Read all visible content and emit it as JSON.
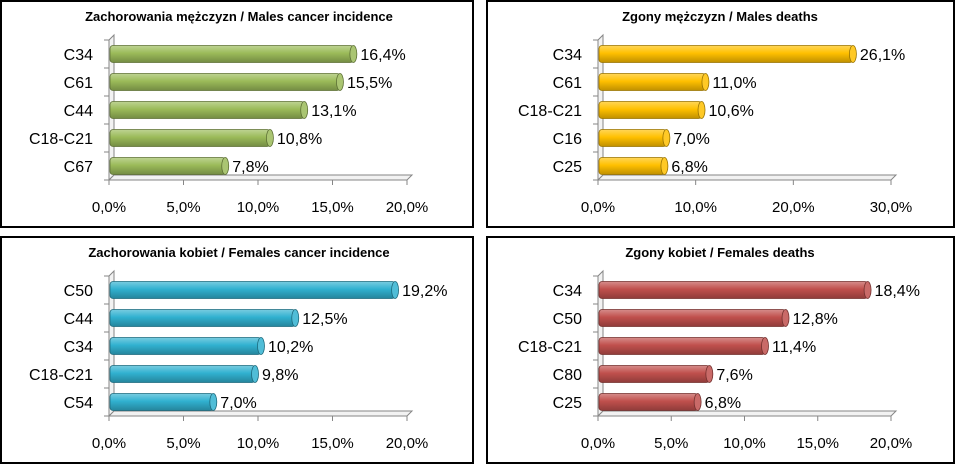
{
  "chart_data": [
    {
      "type": "bar",
      "orientation": "horizontal",
      "title": "Zachorowania mężczyzn / Males cancer incidence",
      "categories": [
        "C34",
        "C61",
        "C44",
        "C18-C21",
        "C67"
      ],
      "values": [
        16.4,
        15.5,
        13.1,
        10.8,
        7.8
      ],
      "value_labels": [
        "16,4%",
        "15,5%",
        "13,1%",
        "10,8%",
        "7,8%"
      ],
      "xlim": [
        0,
        20
      ],
      "x_ticks": [
        0,
        5,
        10,
        15,
        20
      ],
      "x_tick_labels": [
        "0,0%",
        "5,0%",
        "10,0%",
        "15,0%",
        "20,0%"
      ],
      "color": "#9bbb59",
      "xlabel": "",
      "ylabel": "",
      "grid": false
    },
    {
      "type": "bar",
      "orientation": "horizontal",
      "title": "Zgony mężczyzn / Males deaths",
      "categories": [
        "C34",
        "C61",
        "C18-C21",
        "C16",
        "C25"
      ],
      "values": [
        26.1,
        11.0,
        10.6,
        7.0,
        6.8
      ],
      "value_labels": [
        "26,1%",
        "11,0%",
        "10,6%",
        "7,0%",
        "6,8%"
      ],
      "xlim": [
        0,
        30
      ],
      "x_ticks": [
        0,
        10,
        20,
        30
      ],
      "x_tick_labels": [
        "0,0%",
        "10,0%",
        "20,0%",
        "30,0%"
      ],
      "color": "#ffc000",
      "xlabel": "",
      "ylabel": "",
      "grid": false
    },
    {
      "type": "bar",
      "orientation": "horizontal",
      "title": "Zachorowania kobiet / Females cancer incidence",
      "categories": [
        "C50",
        "C44",
        "C34",
        "C18-C21",
        "C54"
      ],
      "values": [
        19.2,
        12.5,
        10.2,
        9.8,
        7.0
      ],
      "value_labels": [
        "19,2%",
        "12,5%",
        "10,2%",
        "9,8%",
        "7,0%"
      ],
      "xlim": [
        0,
        20
      ],
      "x_ticks": [
        0,
        5,
        10,
        15,
        20
      ],
      "x_tick_labels": [
        "0,0%",
        "5,0%",
        "10,0%",
        "15,0%",
        "20,0%"
      ],
      "color": "#31b1d0",
      "xlabel": "",
      "ylabel": "",
      "grid": false
    },
    {
      "type": "bar",
      "orientation": "horizontal",
      "title": "Zgony kobiet / Females deaths",
      "categories": [
        "C34",
        "C50",
        "C18-C21",
        "C80",
        "C25"
      ],
      "values": [
        18.4,
        12.8,
        11.4,
        7.6,
        6.8
      ],
      "value_labels": [
        "18,4%",
        "12,8%",
        "11,4%",
        "7,6%",
        "6,8%"
      ],
      "xlim": [
        0,
        20
      ],
      "x_ticks": [
        0,
        5,
        10,
        15,
        20
      ],
      "x_tick_labels": [
        "0,0%",
        "5,0%",
        "10,0%",
        "15,0%",
        "20,0%"
      ],
      "color": "#c0504d",
      "xlabel": "",
      "ylabel": "",
      "grid": false
    }
  ]
}
